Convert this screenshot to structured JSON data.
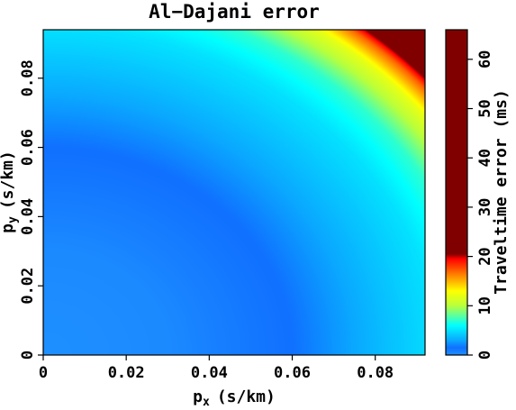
{
  "chart_data": [
    {
      "type": "heatmap",
      "title": "Al−Dajani error",
      "xlabel": {
        "symbol": "p",
        "subscript": "x",
        "units": "(s/km)"
      },
      "ylabel": {
        "symbol": "p",
        "subscript": "y",
        "units": "(s/km)"
      },
      "xlim": [
        0,
        0.092
      ],
      "ylim": [
        0,
        0.094
      ],
      "x_ticks": [
        {
          "value": 0,
          "label": "0"
        },
        {
          "value": 0.02,
          "label": "0.02"
        },
        {
          "value": 0.04,
          "label": "0.04"
        },
        {
          "value": 0.06,
          "label": "0.06"
        },
        {
          "value": 0.08,
          "label": "0.08"
        }
      ],
      "y_ticks": [
        {
          "value": 0,
          "label": "0"
        },
        {
          "value": 0.02,
          "label": "0.02"
        },
        {
          "value": 0.04,
          "label": "0.04"
        },
        {
          "value": 0.06,
          "label": "0.06"
        },
        {
          "value": 0.08,
          "label": "0.08"
        }
      ],
      "surface": {
        "variable": "radial slowness p = sqrt(px^2 + py^2) (s/km)",
        "profile_points": [
          {
            "p": 0.0,
            "error_ms": 0.0
          },
          {
            "p": 0.03,
            "error_ms": 0.3
          },
          {
            "p": 0.06,
            "error_ms": 1.5
          },
          {
            "p": 0.08,
            "error_ms": 3.5
          },
          {
            "p": 0.095,
            "error_ms": 5.0
          },
          {
            "p": 0.105,
            "error_ms": 7.0
          },
          {
            "p": 0.115,
            "error_ms": 12.0
          },
          {
            "p": 0.12,
            "error_ms": 17.0
          },
          {
            "p": 0.123,
            "error_ms": 22.0
          },
          {
            "p": 0.128,
            "error_ms": 66.0
          }
        ]
      },
      "grid": false,
      "legend": "none",
      "colorbar": {
        "label": "Traveltime error (ms)",
        "position": "right",
        "range": [
          0,
          66
        ],
        "ticks": [
          {
            "value": 0,
            "label": "0"
          },
          {
            "value": 10,
            "label": "10"
          },
          {
            "value": 20,
            "label": "20"
          },
          {
            "value": 30,
            "label": "30"
          },
          {
            "value": 40,
            "label": "40"
          },
          {
            "value": 50,
            "label": "50"
          },
          {
            "value": 60,
            "label": "60"
          }
        ],
        "colormap": [
          {
            "value": 0,
            "color": "#1e90ff"
          },
          {
            "value": 1.5,
            "color": "#1070ff"
          },
          {
            "value": 3,
            "color": "#0aa8ff"
          },
          {
            "value": 6,
            "color": "#00ffff"
          },
          {
            "value": 10,
            "color": "#b8ff3c"
          },
          {
            "value": 13,
            "color": "#ffff00"
          },
          {
            "value": 16,
            "color": "#ff8c00"
          },
          {
            "value": 19.5,
            "color": "#ff0000"
          },
          {
            "value": 20.5,
            "color": "#800000"
          },
          {
            "value": 66,
            "color": "#800000"
          }
        ]
      }
    }
  ]
}
